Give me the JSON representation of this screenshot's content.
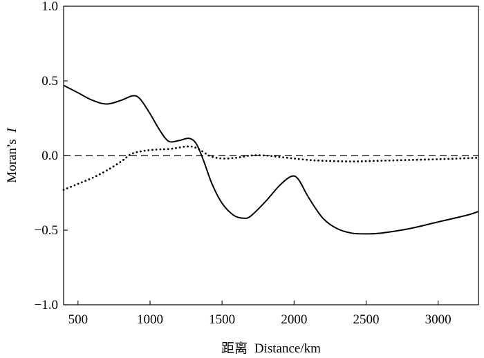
{
  "chart_data": {
    "type": "line",
    "xlabel_prefix": "距离",
    "xlabel": "Distance/km",
    "ylabel_prefix": "Moran’s",
    "ylabel_italic": "I",
    "xlim": [
      400,
      3280
    ],
    "ylim": [
      -1.0,
      1.0
    ],
    "x_ticks": [
      500,
      1000,
      1500,
      2000,
      2500,
      3000
    ],
    "x_tick_labels": [
      "500",
      "1000",
      "1500",
      "2000",
      "2500",
      "3000"
    ],
    "y_ticks": [
      1.0,
      0.5,
      0.0,
      -0.5,
      -1.0
    ],
    "y_tick_labels": [
      "1.0",
      "0.5",
      "0.0",
      "−0.5",
      "−1.0"
    ],
    "grid": false,
    "reference_line": {
      "y": 0,
      "style": "dashed"
    },
    "series": [
      {
        "style": "solid",
        "points": [
          [
            400,
            0.47
          ],
          [
            500,
            0.42
          ],
          [
            600,
            0.37
          ],
          [
            700,
            0.345
          ],
          [
            800,
            0.37
          ],
          [
            880,
            0.4
          ],
          [
            930,
            0.38
          ],
          [
            1000,
            0.28
          ],
          [
            1070,
            0.165
          ],
          [
            1130,
            0.095
          ],
          [
            1200,
            0.1
          ],
          [
            1270,
            0.115
          ],
          [
            1320,
            0.08
          ],
          [
            1370,
            -0.03
          ],
          [
            1430,
            -0.19
          ],
          [
            1500,
            -0.32
          ],
          [
            1580,
            -0.4
          ],
          [
            1650,
            -0.42
          ],
          [
            1700,
            -0.405
          ],
          [
            1800,
            -0.31
          ],
          [
            1900,
            -0.2
          ],
          [
            1980,
            -0.14
          ],
          [
            2030,
            -0.16
          ],
          [
            2100,
            -0.28
          ],
          [
            2200,
            -0.42
          ],
          [
            2300,
            -0.49
          ],
          [
            2400,
            -0.52
          ],
          [
            2500,
            -0.525
          ],
          [
            2600,
            -0.52
          ],
          [
            2800,
            -0.49
          ],
          [
            3000,
            -0.445
          ],
          [
            3200,
            -0.4
          ],
          [
            3280,
            -0.375
          ]
        ]
      },
      {
        "style": "dotted",
        "points": [
          [
            400,
            -0.23
          ],
          [
            500,
            -0.19
          ],
          [
            600,
            -0.15
          ],
          [
            700,
            -0.1
          ],
          [
            800,
            -0.04
          ],
          [
            870,
            0.01
          ],
          [
            950,
            0.03
          ],
          [
            1050,
            0.04
          ],
          [
            1150,
            0.045
          ],
          [
            1250,
            0.06
          ],
          [
            1310,
            0.055
          ],
          [
            1360,
            0.03
          ],
          [
            1420,
            -0.005
          ],
          [
            1500,
            -0.02
          ],
          [
            1600,
            -0.015
          ],
          [
            1700,
            0.0
          ],
          [
            1800,
            0.0
          ],
          [
            1900,
            -0.01
          ],
          [
            2000,
            -0.02
          ],
          [
            2100,
            -0.03
          ],
          [
            2200,
            -0.035
          ],
          [
            2400,
            -0.04
          ],
          [
            2600,
            -0.035
          ],
          [
            2800,
            -0.03
          ],
          [
            3000,
            -0.025
          ],
          [
            3280,
            -0.015
          ]
        ]
      }
    ]
  }
}
